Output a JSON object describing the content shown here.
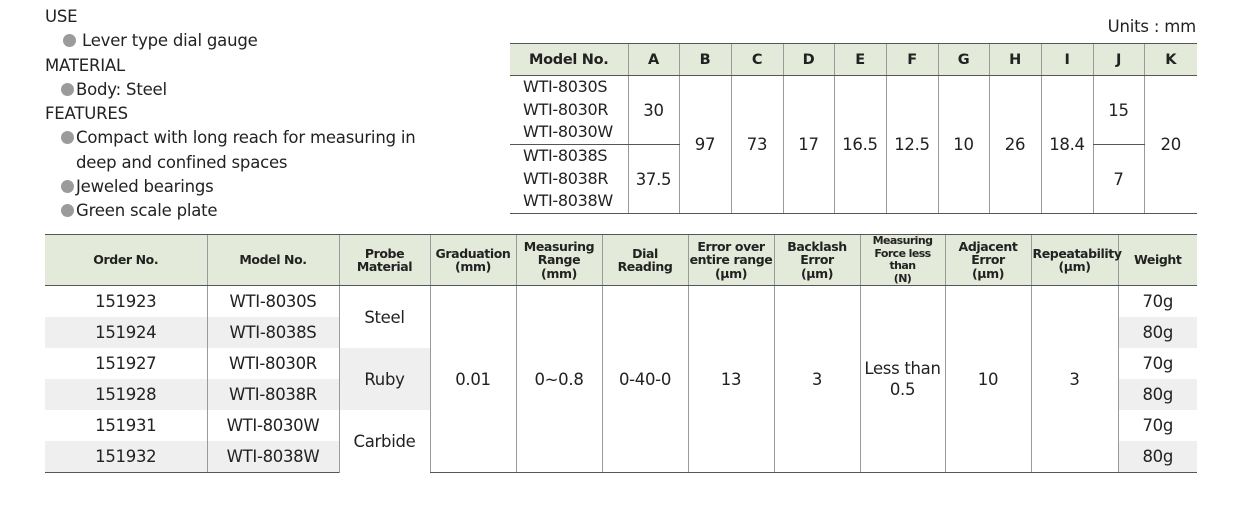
{
  "info": {
    "use_heading": "USE",
    "use_item": "Lever type dial gauge",
    "material_heading": "MATERIAL",
    "material_item": "Body: Steel",
    "features_heading": "FEATURES",
    "features": [
      "Compact with long reach for measuring in",
      "deep and confined spaces",
      "Jeweled bearings",
      "Green scale plate"
    ]
  },
  "units": "Units : mm",
  "dimensions": {
    "headers": [
      "Model No.",
      "A",
      "B",
      "C",
      "D",
      "E",
      "F",
      "G",
      "H",
      "I",
      "J",
      "K"
    ],
    "group1_models": [
      "WTI-8030S",
      "WTI-8030R",
      "WTI-8030W"
    ],
    "group2_models": [
      "WTI-8038S",
      "WTI-8038R",
      "WTI-8038W"
    ],
    "a1": "30",
    "a2": "37.5",
    "b": "97",
    "c": "73",
    "d": "17",
    "e": "16.5",
    "f": "12.5",
    "g": "10",
    "h": "26",
    "i": "18.4",
    "j1": "15",
    "j2": "7",
    "k": "20"
  },
  "order_table": {
    "headers": {
      "order_no": "Order No.",
      "model_no": "Model No.",
      "probe_material": [
        "Probe",
        "Material"
      ],
      "graduation": [
        "Graduation",
        "(mm)"
      ],
      "measuring_range": [
        "Measuring",
        "Range",
        "(mm)"
      ],
      "dial_reading": [
        "Dial",
        "Reading"
      ],
      "error_range": [
        "Error over",
        "entire range",
        "(μm)"
      ],
      "backlash": [
        "Backlash",
        "Error",
        "(μm)"
      ],
      "measuring_force": [
        "Measuring",
        "Force less than",
        "(N)"
      ],
      "adjacent_error": [
        "Adjacent",
        "Error",
        "(μm)"
      ],
      "repeatability": [
        "Repeatability",
        "(μm)"
      ],
      "weight": "Weight"
    },
    "rows": [
      {
        "order": "151923",
        "model": "WTI-8030S",
        "weight": "70g"
      },
      {
        "order": "151924",
        "model": "WTI-8038S",
        "weight": "80g"
      },
      {
        "order": "151927",
        "model": "WTI-8030R",
        "weight": "70g"
      },
      {
        "order": "151928",
        "model": "WTI-8038R",
        "weight": "80g"
      },
      {
        "order": "151931",
        "model": "WTI-8030W",
        "weight": "70g"
      },
      {
        "order": "151932",
        "model": "WTI-8038W",
        "weight": "80g"
      }
    ],
    "materials": [
      "Steel",
      "Ruby",
      "Carbide"
    ],
    "graduation": "0.01",
    "measuring_range": "0∼0.8",
    "dial_reading": "0-40-0",
    "error_range": "13",
    "backlash": "3",
    "measuring_force": [
      "Less than",
      "0.5"
    ],
    "adjacent_error": "10",
    "repeatability": "3"
  }
}
